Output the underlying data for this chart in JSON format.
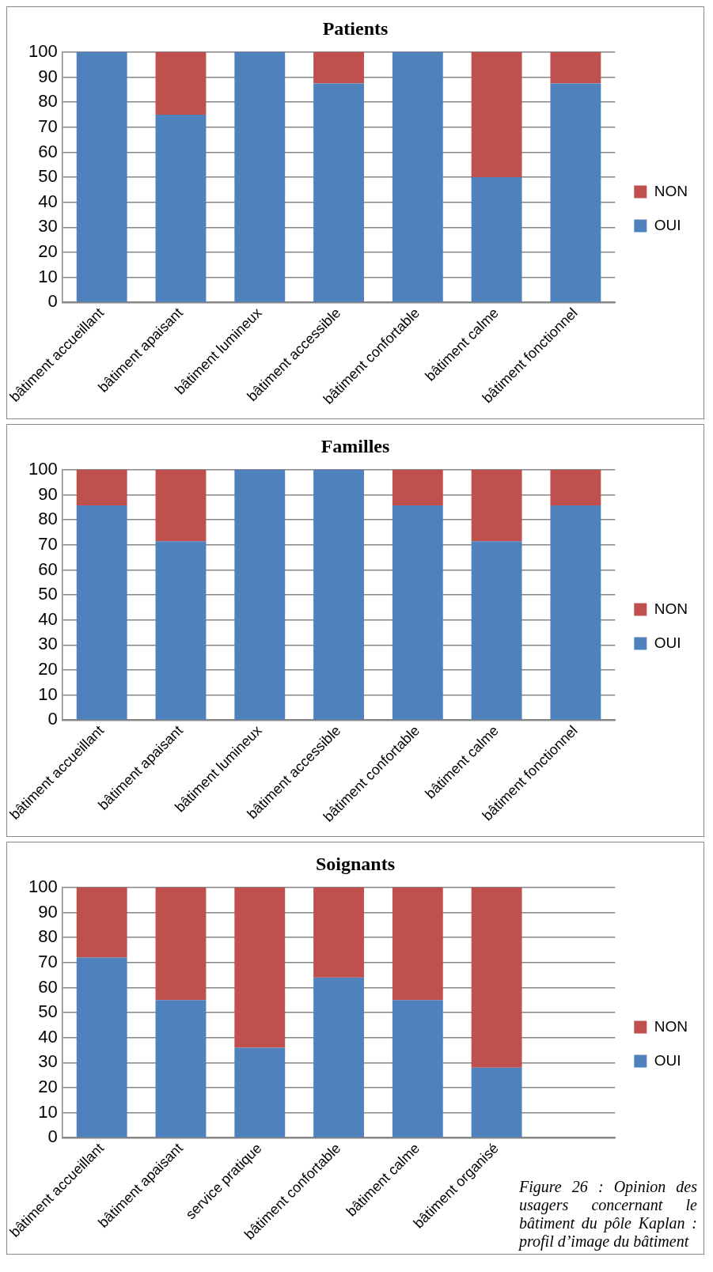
{
  "chart_data": [
    {
      "type": "bar",
      "title": "Patients",
      "stacked": true,
      "categories": [
        "bâtiment accueillant",
        "bâtiment apaisant",
        "bâtiment lumineux",
        "bâtiment accessible",
        "bâtiment confortable",
        "bâtiment calme",
        "bâtiment fonctionnel"
      ],
      "series": [
        {
          "name": "OUI",
          "color": "#4f81bd",
          "values": [
            100,
            75,
            100,
            87.5,
            100,
            50,
            87.5
          ]
        },
        {
          "name": "NON",
          "color": "#c0504d",
          "values": [
            0,
            25,
            0,
            12.5,
            0,
            50,
            12.5
          ]
        }
      ],
      "ylim": [
        0,
        100
      ],
      "yticks": [
        0,
        10,
        20,
        30,
        40,
        50,
        60,
        70,
        80,
        90,
        100
      ],
      "grid": "y",
      "legend": "right"
    },
    {
      "type": "bar",
      "title": "Familles",
      "stacked": true,
      "categories": [
        "bâtiment accueillant",
        "bâtiment apaisant",
        "bâtiment lumineux",
        "bâtiment accessible",
        "bâtiment confortable",
        "bâtiment calme",
        "bâtiment fonctionnel"
      ],
      "series": [
        {
          "name": "OUI",
          "color": "#4f81bd",
          "values": [
            85.7,
            71.4,
            100,
            100,
            85.7,
            71.4,
            85.7
          ]
        },
        {
          "name": "NON",
          "color": "#c0504d",
          "values": [
            14.3,
            28.6,
            0,
            0,
            14.3,
            28.6,
            14.3
          ]
        }
      ],
      "ylim": [
        0,
        100
      ],
      "yticks": [
        0,
        10,
        20,
        30,
        40,
        50,
        60,
        70,
        80,
        90,
        100
      ],
      "grid": "y",
      "legend": "right"
    },
    {
      "type": "bar",
      "title": "Soignants",
      "stacked": true,
      "categories": [
        "bâtiment accueillant",
        "bâtiment apaisant",
        "service pratique",
        "bâtiment confortable",
        "bâtiment calme",
        "bâtiment organisé",
        null
      ],
      "series": [
        {
          "name": "OUI",
          "color": "#4f81bd",
          "values": [
            72,
            55,
            36,
            64,
            55,
            28,
            null
          ]
        },
        {
          "name": "NON",
          "color": "#c0504d",
          "values": [
            28,
            45,
            64,
            36,
            45,
            72,
            null
          ]
        }
      ],
      "ylim": [
        0,
        100
      ],
      "yticks": [
        0,
        10,
        20,
        30,
        40,
        50,
        60,
        70,
        80,
        90,
        100
      ],
      "grid": "y",
      "legend": "right",
      "annotations": [
        "Figure 26 : Opinion des usagers concernant le bâtiment du pôle Kaplan : profil d’image du bâtiment"
      ]
    }
  ]
}
